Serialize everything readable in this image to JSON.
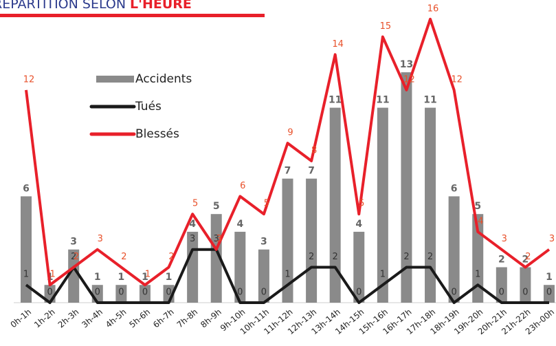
{
  "chart_data": {
    "type": "bar_line",
    "title": "RÉPARTITION SELON",
    "title_highlight": "L'HEURE",
    "categories": [
      "0h-1h",
      "1h-2h",
      "2h-3h",
      "3h-4h",
      "4h-5h",
      "5h-6h",
      "6h-7h",
      "7h-8h",
      "8h-9h",
      "9h-10h",
      "10h-11h",
      "11h-12h",
      "12h-13h",
      "13h-14h",
      "14h-15h",
      "15h-16h",
      "16h-17h",
      "17h-18h",
      "18h-19h",
      "19h-20h",
      "20h-21h",
      "21h-22h",
      "23h-00h"
    ],
    "series": [
      {
        "name": "Accidents",
        "type": "bar",
        "color": "#8a8a8a",
        "values": [
          6,
          1,
          3,
          1,
          1,
          1,
          1,
          4,
          5,
          4,
          3,
          7,
          7,
          11,
          4,
          11,
          13,
          11,
          6,
          5,
          2,
          2,
          1
        ]
      },
      {
        "name": "Tués",
        "type": "line",
        "color": "#1a1a1a",
        "values": [
          1,
          0,
          2,
          0,
          0,
          0,
          0,
          3,
          3,
          0,
          0,
          1,
          2,
          2,
          0,
          1,
          2,
          2,
          0,
          1,
          0,
          0,
          0
        ]
      },
      {
        "name": "Blessés",
        "type": "line",
        "color": "#e8202a",
        "values": [
          12,
          1,
          2,
          3,
          2,
          1,
          2,
          5,
          3,
          6,
          5,
          9,
          8,
          14,
          5,
          15,
          12,
          16,
          12,
          4,
          3,
          2,
          3
        ]
      }
    ],
    "ylim": [
      0,
      17
    ]
  }
}
